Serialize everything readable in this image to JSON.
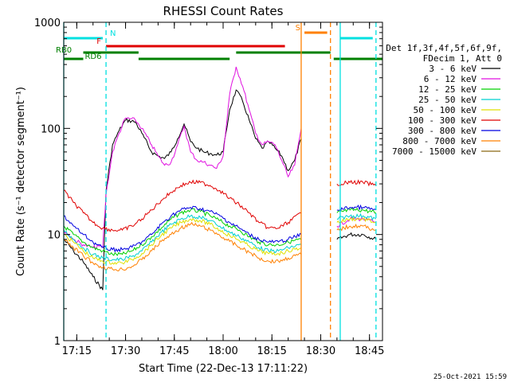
{
  "chart_data": {
    "type": "line",
    "title": "RHESSI Count Rates",
    "xlabel": "Start Time (22-Dec-13 17:11:22)",
    "ylabel": "Count Rate (s⁻¹ detector segment⁻¹)",
    "y_scale": "log",
    "ylim": [
      1,
      1000
    ],
    "xlim": [
      "17:11",
      "18:49"
    ],
    "x_ticks": [
      "17:15",
      "17:30",
      "17:45",
      "18:00",
      "18:15",
      "18:30",
      "18:45"
    ],
    "y_ticks": [
      "1",
      "10",
      "100",
      "1000"
    ],
    "timestamp": "25-Oct-2021 15:59",
    "legend": {
      "placement": "right",
      "header": [
        "Det 1f,3f,4f,5f,6f,9f,",
        "FDecim 1, Att 0"
      ],
      "entries": [
        {
          "label": "3 - 6 keV",
          "color": "#000000"
        },
        {
          "label": "6 - 12 keV",
          "color": "#e010e0"
        },
        {
          "label": "12 - 25 keV",
          "color": "#00d000"
        },
        {
          "label": "25 - 50 keV",
          "color": "#00d0d0"
        },
        {
          "label": "50 - 100 keV",
          "color": "#e0e000"
        },
        {
          "label": "100 - 300 keV",
          "color": "#e00000"
        },
        {
          "label": "300 - 800 keV",
          "color": "#0000e0"
        },
        {
          "label": "800 - 7000 keV",
          "color": "#ff8000"
        },
        {
          "label": "7000 - 15000 keV",
          "color": "#8b6914"
        }
      ]
    },
    "flag_bars": [
      {
        "label": "N",
        "color": "#00e0e0",
        "segments": [
          [
            "17:11",
            "17:23"
          ],
          [
            "18:36",
            "18:46"
          ]
        ]
      },
      {
        "label": "F",
        "color": "#e00000",
        "segments": [
          [
            "17:24",
            "18:19"
          ]
        ]
      },
      {
        "label": "S",
        "color": "#ff8000",
        "segments": [
          [
            "18:25",
            "18:32"
          ]
        ]
      },
      {
        "label": "RB0",
        "color": "#008000",
        "segments": [
          [
            "17:17",
            "17:34"
          ],
          [
            "18:04",
            "18:33"
          ]
        ]
      },
      {
        "label": "RD6",
        "color": "#008000",
        "segments": [
          [
            "17:11",
            "17:17"
          ],
          [
            "17:34",
            "18:02"
          ],
          [
            "18:34",
            "18:49"
          ]
        ]
      }
    ],
    "vlines": [
      {
        "x": "17:11",
        "color": "#00e0e0",
        "style": "solid"
      },
      {
        "x": "17:24",
        "color": "#00e0e0",
        "style": "dashed"
      },
      {
        "x": "18:24",
        "color": "#ff8000",
        "style": "solid"
      },
      {
        "x": "18:33",
        "color": "#ff8000",
        "style": "dashed"
      },
      {
        "x": "18:36",
        "color": "#00e0e0",
        "style": "solid"
      },
      {
        "x": "18:47",
        "color": "#00e0e0",
        "style": "dashed"
      }
    ],
    "series": [
      {
        "name": "3 - 6 keV",
        "color": "#000000",
        "x": [
          "17:11",
          "17:14",
          "17:17",
          "17:20",
          "17:23",
          "17:24",
          "17:26",
          "17:28",
          "17:30",
          "17:33",
          "17:35",
          "17:38",
          "17:40",
          "17:42",
          "17:44",
          "17:46",
          "17:48",
          "17:50",
          "17:52",
          "17:54",
          "17:56",
          "17:58",
          "18:00",
          "18:02",
          "18:04",
          "18:06",
          "18:08",
          "18:10",
          "18:12",
          "18:14",
          "18:16",
          "18:18",
          "18:20",
          "18:22",
          "18:24",
          "18:35",
          "18:39",
          "18:43",
          "18:47"
        ],
        "y": [
          9,
          7,
          5.5,
          4,
          3,
          26,
          70,
          95,
          120,
          115,
          90,
          60,
          55,
          52,
          60,
          80,
          110,
          75,
          65,
          60,
          58,
          56,
          60,
          150,
          230,
          180,
          120,
          80,
          65,
          75,
          65,
          55,
          40,
          50,
          80,
          9,
          10,
          10,
          9
        ]
      },
      {
        "name": "6 - 12 keV",
        "color": "#e010e0",
        "x": [
          "17:11",
          "17:14",
          "17:17",
          "17:20",
          "17:23",
          "17:24",
          "17:26",
          "17:28",
          "17:30",
          "17:33",
          "17:35",
          "17:38",
          "17:40",
          "17:42",
          "17:44",
          "17:46",
          "17:48",
          "17:50",
          "17:52",
          "17:54",
          "17:56",
          "17:58",
          "18:00",
          "18:02",
          "18:04",
          "18:06",
          "18:08",
          "18:10",
          "18:12",
          "18:14",
          "18:16",
          "18:18",
          "18:20",
          "18:22",
          "18:24",
          "18:35",
          "18:39",
          "18:43",
          "18:47"
        ],
        "y": [
          11,
          9,
          8,
          7.5,
          7.8,
          24,
          60,
          90,
          125,
          120,
          100,
          70,
          55,
          45,
          48,
          70,
          105,
          60,
          50,
          48,
          45,
          42,
          55,
          210,
          380,
          250,
          150,
          90,
          70,
          75,
          70,
          50,
          35,
          45,
          100,
          12,
          14,
          14,
          13
        ]
      },
      {
        "name": "12 - 25 keV",
        "color": "#00d000",
        "x": [
          "17:11",
          "17:14",
          "17:17",
          "17:20",
          "17:23",
          "17:26",
          "17:29",
          "17:32",
          "17:35",
          "17:38",
          "17:41",
          "17:44",
          "17:47",
          "17:50",
          "17:53",
          "17:56",
          "17:59",
          "18:02",
          "18:05",
          "18:08",
          "18:11",
          "18:14",
          "18:17",
          "18:20",
          "18:24",
          "18:35",
          "18:39",
          "18:43",
          "18:47"
        ],
        "y": [
          12,
          10,
          8.5,
          7.5,
          7,
          6.5,
          6.5,
          7,
          8,
          9.5,
          11.5,
          14,
          16,
          17,
          16.5,
          15,
          13.5,
          12,
          11,
          9.5,
          8.5,
          8,
          8,
          8.5,
          9,
          16,
          17,
          17,
          16
        ]
      },
      {
        "name": "25 - 50 keV",
        "color": "#00d0d0",
        "x": [
          "17:11",
          "17:14",
          "17:17",
          "17:20",
          "17:23",
          "17:26",
          "17:29",
          "17:32",
          "17:35",
          "17:38",
          "17:41",
          "17:44",
          "17:47",
          "17:50",
          "17:53",
          "17:56",
          "17:59",
          "18:02",
          "18:05",
          "18:08",
          "18:11",
          "18:14",
          "18:17",
          "18:20",
          "18:24",
          "18:35",
          "18:39",
          "18:43",
          "18:47"
        ],
        "y": [
          11,
          9,
          7.5,
          6.5,
          6,
          5.8,
          5.8,
          6.2,
          7,
          8.5,
          10.5,
          12.5,
          14,
          15,
          14.5,
          13.5,
          12,
          10.5,
          9.5,
          8.5,
          7.5,
          7,
          7,
          7.5,
          8,
          14,
          15,
          15,
          14
        ]
      },
      {
        "name": "50 - 100 keV",
        "color": "#e0e000",
        "x": [
          "17:11",
          "17:14",
          "17:17",
          "17:20",
          "17:23",
          "17:26",
          "17:29",
          "17:32",
          "17:35",
          "17:38",
          "17:41",
          "17:44",
          "17:47",
          "17:50",
          "17:53",
          "17:56",
          "17:59",
          "18:02",
          "18:05",
          "18:08",
          "18:11",
          "18:14",
          "18:17",
          "18:20",
          "18:24",
          "18:35",
          "18:39",
          "18:43",
          "18:47"
        ],
        "y": [
          10,
          8.5,
          7,
          6,
          5.6,
          5.4,
          5.4,
          5.8,
          6.6,
          8,
          9.8,
          11.5,
          13,
          14,
          13.5,
          12.5,
          11,
          9.8,
          8.8,
          7.8,
          7,
          6.6,
          6.6,
          7,
          7.5,
          13,
          14,
          14,
          13
        ]
      },
      {
        "name": "100 - 300 keV",
        "color": "#e00000",
        "x": [
          "17:11",
          "17:14",
          "17:17",
          "17:20",
          "17:23",
          "17:26",
          "17:29",
          "17:32",
          "17:35",
          "17:38",
          "17:41",
          "17:44",
          "17:47",
          "17:50",
          "17:53",
          "17:56",
          "17:59",
          "18:02",
          "18:05",
          "18:08",
          "18:11",
          "18:14",
          "18:17",
          "18:20",
          "18:24",
          "18:35",
          "18:39",
          "18:43",
          "18:47"
        ],
        "y": [
          26,
          20,
          16,
          13,
          11.5,
          11,
          11,
          12,
          14,
          17,
          21,
          25,
          29,
          31,
          31,
          29,
          26,
          22,
          19,
          16,
          13,
          11.5,
          11.5,
          13,
          16,
          30,
          31,
          31,
          29
        ]
      },
      {
        "name": "300 - 800 keV",
        "color": "#0000e0",
        "x": [
          "17:11",
          "17:14",
          "17:17",
          "17:20",
          "17:23",
          "17:26",
          "17:29",
          "17:32",
          "17:35",
          "17:38",
          "17:41",
          "17:44",
          "17:47",
          "17:50",
          "17:53",
          "17:56",
          "17:59",
          "18:02",
          "18:05",
          "18:08",
          "18:11",
          "18:14",
          "18:17",
          "18:20",
          "18:24",
          "18:35",
          "18:39",
          "18:43",
          "18:47"
        ],
        "y": [
          15,
          12,
          10,
          8.5,
          7.5,
          7.2,
          7.2,
          7.6,
          8.5,
          10,
          12.5,
          15,
          17,
          18,
          17.5,
          16.5,
          15,
          13,
          11.5,
          10,
          9,
          8.5,
          8.5,
          9,
          10,
          17,
          18,
          18,
          17
        ]
      },
      {
        "name": "800 - 7000 keV",
        "color": "#ff8000",
        "x": [
          "17:11",
          "17:14",
          "17:17",
          "17:20",
          "17:23",
          "17:26",
          "17:29",
          "17:32",
          "17:35",
          "17:38",
          "17:41",
          "17:44",
          "17:47",
          "17:50",
          "17:53",
          "17:56",
          "17:59",
          "18:02",
          "18:05",
          "18:08",
          "18:11",
          "18:14",
          "18:17",
          "18:20",
          "18:24",
          "18:35",
          "18:39",
          "18:43",
          "18:47"
        ],
        "y": [
          9,
          7.5,
          6.3,
          5.4,
          4.9,
          4.7,
          4.7,
          5,
          5.8,
          7,
          8.6,
          10,
          11.5,
          12.5,
          12,
          11,
          9.8,
          8.6,
          7.6,
          6.8,
          6,
          5.6,
          5.6,
          6,
          6.5,
          11,
          12,
          12,
          11
        ]
      }
    ]
  }
}
